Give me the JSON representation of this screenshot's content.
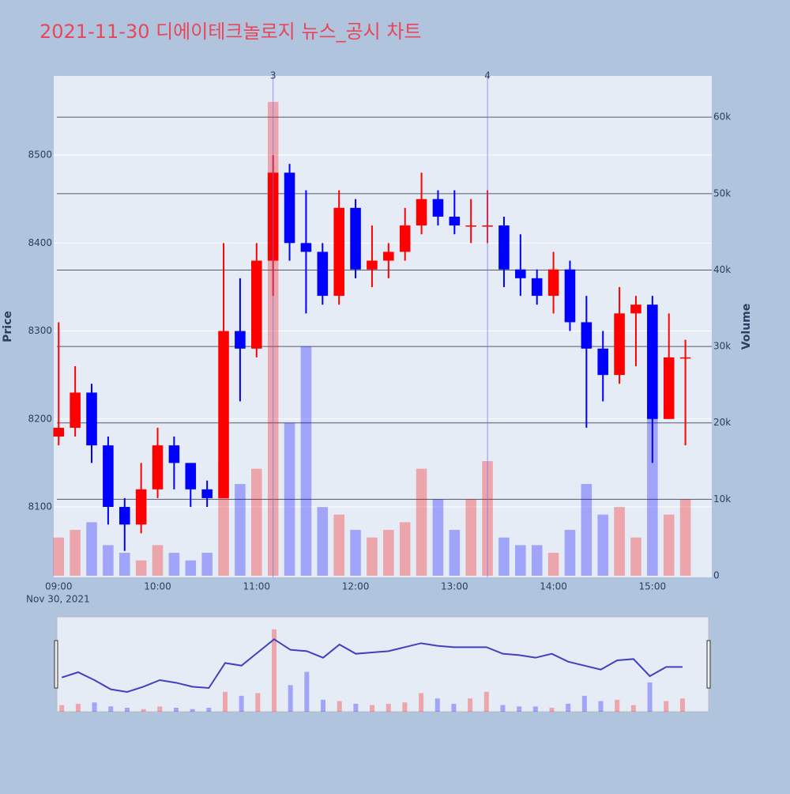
{
  "chart_data": {
    "type": "candlestick",
    "title": "2021-11-30 디에이테크놀로지 뉴스_공시 차트",
    "y_title": "Price",
    "y2_title": "Volume",
    "x_date": "Nov 30, 2021",
    "x": [
      "09:00",
      "09:10",
      "09:20",
      "09:30",
      "09:40",
      "09:50",
      "10:00",
      "10:10",
      "10:20",
      "10:30",
      "10:40",
      "10:50",
      "11:00",
      "11:10",
      "11:20",
      "11:30",
      "11:40",
      "11:50",
      "12:00",
      "12:10",
      "12:20",
      "12:30",
      "12:40",
      "12:50",
      "13:00",
      "13:10",
      "13:20",
      "13:30",
      "13:40",
      "13:50",
      "14:00",
      "14:10",
      "14:20",
      "14:30",
      "14:40",
      "14:50",
      "15:00",
      "15:10",
      "15:20"
    ],
    "open": [
      8180,
      8190,
      8230,
      8170,
      8100,
      8080,
      8120,
      8170,
      8150,
      8120,
      8110,
      8300,
      8280,
      8380,
      8480,
      8400,
      8390,
      8340,
      8440,
      8370,
      8380,
      8390,
      8420,
      8450,
      8430,
      8420,
      8420,
      8420,
      8370,
      8360,
      8340,
      8370,
      8310,
      8280,
      8250,
      8320,
      8330,
      8200,
      8270
    ],
    "high": [
      8310,
      8260,
      8240,
      8180,
      8110,
      8150,
      8190,
      8180,
      8150,
      8130,
      8400,
      8360,
      8400,
      8500,
      8490,
      8460,
      8400,
      8460,
      8450,
      8420,
      8400,
      8440,
      8480,
      8460,
      8460,
      8450,
      8460,
      8430,
      8410,
      8370,
      8390,
      8380,
      8340,
      8300,
      8350,
      8340,
      8340,
      8320,
      8290
    ],
    "low": [
      8170,
      8180,
      8150,
      8080,
      8050,
      8070,
      8110,
      8120,
      8100,
      8100,
      8110,
      8220,
      8270,
      8340,
      8380,
      8320,
      8330,
      8330,
      8360,
      8350,
      8360,
      8380,
      8410,
      8420,
      8410,
      8400,
      8400,
      8350,
      8340,
      8330,
      8320,
      8300,
      8190,
      8220,
      8240,
      8260,
      8150,
      8200,
      8170
    ],
    "close": [
      8190,
      8230,
      8170,
      8100,
      8080,
      8120,
      8170,
      8150,
      8120,
      8110,
      8300,
      8280,
      8380,
      8480,
      8400,
      8390,
      8340,
      8440,
      8370,
      8380,
      8390,
      8420,
      8450,
      8430,
      8420,
      8420,
      8420,
      8370,
      8360,
      8340,
      8370,
      8310,
      8280,
      8250,
      8320,
      8330,
      8200,
      8270,
      8270
    ],
    "volume": [
      5000,
      6000,
      7000,
      4000,
      3000,
      2000,
      4000,
      3000,
      2000,
      3000,
      15000,
      12000,
      14000,
      62000,
      20000,
      30000,
      9000,
      8000,
      6000,
      5000,
      6000,
      7000,
      14000,
      10000,
      6000,
      10000,
      15000,
      5000,
      4000,
      4000,
      3000,
      6000,
      12000,
      8000,
      9000,
      5000,
      22000,
      8000,
      10000
    ],
    "up_color": "#ff0000",
    "down_color": "#0000ff",
    "xlim": [
      "08:57",
      "15:36"
    ],
    "xticks": [
      "09:00",
      "10:00",
      "11:00",
      "12:00",
      "13:00",
      "14:00",
      "15:00"
    ],
    "ylim": [
      8020,
      8590
    ],
    "yticks": [
      8100,
      8200,
      8300,
      8400,
      8500
    ],
    "y2lim": [
      0,
      65400
    ],
    "y2ticks": [
      0,
      {
        "value": 10000,
        "label": "10k"
      },
      {
        "value": 20000,
        "label": "20k"
      },
      {
        "value": 30000,
        "label": "30k"
      },
      {
        "value": 40000,
        "label": "40k"
      },
      {
        "value": 50000,
        "label": "50k"
      },
      {
        "value": 60000,
        "label": "60k"
      }
    ],
    "annotations": [
      {
        "x": "11:10",
        "text": "3"
      },
      {
        "x": "13:20",
        "text": "4"
      }
    ]
  }
}
